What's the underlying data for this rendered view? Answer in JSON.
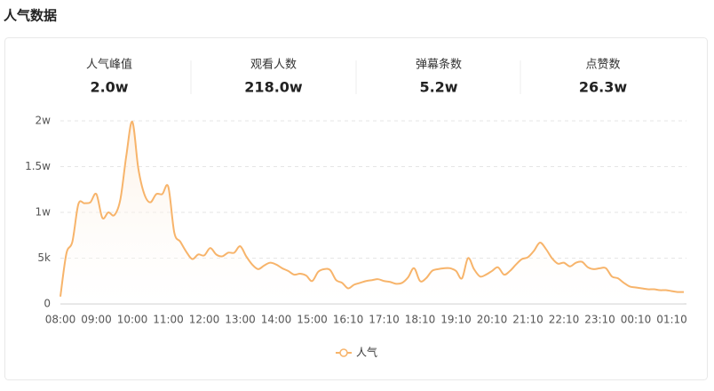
{
  "header": {
    "title": "人气数据"
  },
  "stats": [
    {
      "label": "人气峰值",
      "value": "2.0w"
    },
    {
      "label": "观看人数",
      "value": "218.0w"
    },
    {
      "label": "弹幕条数",
      "value": "5.2w"
    },
    {
      "label": "点赞数",
      "value": "26.3w"
    }
  ],
  "chart_data": {
    "type": "line",
    "categories": [
      "08:00",
      null,
      null,
      null,
      null,
      null,
      "09:00",
      null,
      null,
      null,
      null,
      null,
      "10:00",
      null,
      null,
      null,
      null,
      null,
      "11:00",
      null,
      null,
      null,
      null,
      null,
      "12:00",
      null,
      null,
      null,
      null,
      null,
      "13:00",
      null,
      null,
      null,
      null,
      null,
      "14:00",
      null,
      null,
      null,
      null,
      null,
      "15:00",
      null,
      null,
      null,
      null,
      null,
      "16:10",
      null,
      null,
      null,
      null,
      null,
      "17:10",
      null,
      null,
      null,
      null,
      null,
      "18:10",
      null,
      null,
      null,
      null,
      null,
      "19:10",
      null,
      null,
      null,
      null,
      null,
      "20:10",
      null,
      null,
      null,
      null,
      null,
      "21:10",
      null,
      null,
      null,
      null,
      null,
      "22:10",
      null,
      null,
      null,
      null,
      null,
      "23:10",
      null,
      null,
      null,
      null,
      null,
      "00:10",
      null,
      null,
      null,
      null,
      null,
      "01:10",
      null,
      null
    ],
    "series": [
      {
        "name": "人气",
        "color": "#f7b46b",
        "values": [
          800,
          5500,
          6800,
          10900,
          11000,
          11100,
          12000,
          9400,
          10000,
          9700,
          11400,
          16200,
          19900,
          14800,
          12000,
          11100,
          12000,
          12000,
          12800,
          7800,
          6800,
          5700,
          4900,
          5400,
          5300,
          6100,
          5400,
          5200,
          5600,
          5600,
          6300,
          5200,
          4300,
          3800,
          4200,
          4500,
          4300,
          3900,
          3600,
          3200,
          3300,
          3100,
          2500,
          3500,
          3800,
          3700,
          2600,
          2300,
          1700,
          2100,
          2300,
          2500,
          2600,
          2700,
          2500,
          2400,
          2200,
          2300,
          2900,
          3900,
          2500,
          2800,
          3600,
          3800,
          3900,
          3900,
          3600,
          2800,
          5000,
          3800,
          3000,
          3200,
          3600,
          4000,
          3200,
          3600,
          4300,
          4900,
          5100,
          5800,
          6700,
          6000,
          5000,
          4400,
          4500,
          4100,
          4500,
          4600,
          4000,
          3800,
          3900,
          3900,
          3000,
          2800,
          2300,
          1900,
          1800,
          1700,
          1600,
          1600,
          1500,
          1500,
          1400,
          1300,
          1300
        ]
      }
    ],
    "ylim": [
      0,
      20000
    ],
    "yticks": [
      0,
      {
        "value": 5000,
        "label": "5k"
      },
      {
        "value": 10000,
        "label": "1w"
      },
      {
        "value": 15000,
        "label": "1.5w"
      },
      {
        "value": 20000,
        "label": "2w"
      }
    ],
    "grid": true
  }
}
